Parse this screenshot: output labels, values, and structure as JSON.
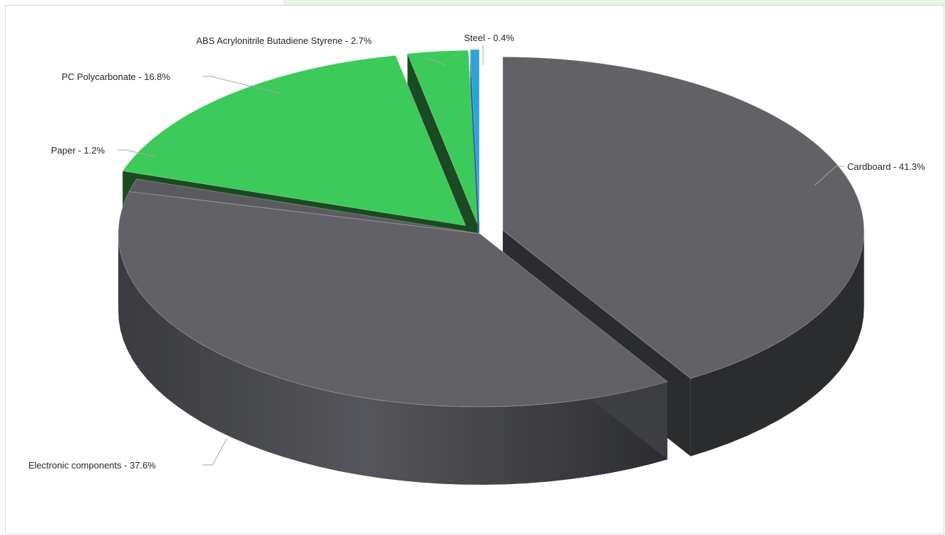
{
  "chart_data": {
    "type": "pie",
    "style": "3d-exploded",
    "slices": [
      {
        "label": "Cardboard - 41.3%",
        "value": 41.3,
        "color": "#616166",
        "side": "#2b2c2e"
      },
      {
        "label": "Electronic components - 37.6%",
        "value": 37.6,
        "color": "#616166",
        "side": "#3d3e42"
      },
      {
        "label": "Paper - 1.2%",
        "value": 1.2,
        "color": "#5a5b60",
        "side": "#2a2a2c"
      },
      {
        "label": "PC Polycarbonate - 16.8%",
        "value": 16.8,
        "color": "#3cca5a",
        "side": "#1a4a22"
      },
      {
        "label": "ABS Acrylonitrile Butadiene Styrene - 2.7%",
        "value": 2.7,
        "color": "#3cca5a",
        "side": "#1a4a22"
      },
      {
        "label": "Steel - 0.4%",
        "value": 0.4,
        "color": "#2ea3d8",
        "side": "#1d6a8c"
      }
    ]
  }
}
